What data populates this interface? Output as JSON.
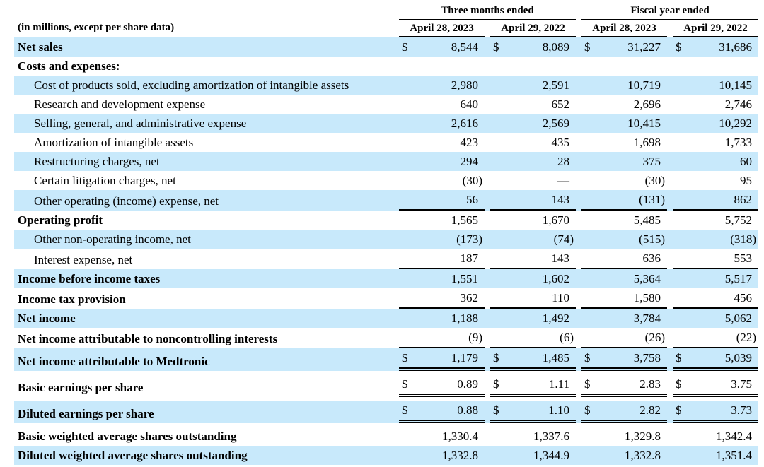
{
  "table": {
    "note": "(in millions, except per share data)",
    "highlight_color": "#c8e9fb",
    "text_color": "#000000",
    "col_groups": [
      {
        "label": "Three months ended",
        "columns": [
          "April 28, 2023",
          "April 29, 2022"
        ]
      },
      {
        "label": "Fiscal year ended",
        "columns": [
          "April 28, 2023",
          "April 29, 2022"
        ]
      }
    ],
    "rows": [
      {
        "label": "Net sales",
        "bold": true,
        "indent": false,
        "dollar": true,
        "highlight": true,
        "underline": "none",
        "spacer_after": false,
        "values": [
          "8,544",
          "8,089",
          "31,227",
          "31,686"
        ]
      },
      {
        "label": "Costs and expenses:",
        "bold": true,
        "indent": false,
        "dollar": false,
        "highlight": false,
        "underline": "none",
        "spacer_after": false,
        "values": [
          "",
          "",
          "",
          ""
        ]
      },
      {
        "label": "Cost of products sold, excluding amortization of intangible assets",
        "bold": false,
        "indent": true,
        "dollar": false,
        "highlight": true,
        "underline": "none",
        "spacer_after": false,
        "values": [
          "2,980",
          "2,591",
          "10,719",
          "10,145"
        ]
      },
      {
        "label": "Research and development expense",
        "bold": false,
        "indent": true,
        "dollar": false,
        "highlight": false,
        "underline": "none",
        "spacer_after": false,
        "values": [
          "640",
          "652",
          "2,696",
          "2,746"
        ]
      },
      {
        "label": "Selling, general, and administrative expense",
        "bold": false,
        "indent": true,
        "dollar": false,
        "highlight": true,
        "underline": "none",
        "spacer_after": false,
        "values": [
          "2,616",
          "2,569",
          "10,415",
          "10,292"
        ]
      },
      {
        "label": "Amortization of intangible assets",
        "bold": false,
        "indent": true,
        "dollar": false,
        "highlight": false,
        "underline": "none",
        "spacer_after": false,
        "values": [
          "423",
          "435",
          "1,698",
          "1,733"
        ]
      },
      {
        "label": "Restructuring charges, net",
        "bold": false,
        "indent": true,
        "dollar": false,
        "highlight": true,
        "underline": "none",
        "spacer_after": false,
        "values": [
          "294",
          "28",
          "375",
          "60"
        ]
      },
      {
        "label": "Certain litigation charges, net",
        "bold": false,
        "indent": true,
        "dollar": false,
        "highlight": false,
        "underline": "none",
        "spacer_after": false,
        "values": [
          "(30)",
          "—",
          "(30)",
          "95"
        ]
      },
      {
        "label": "Other operating (income) expense, net",
        "bold": false,
        "indent": true,
        "dollar": false,
        "highlight": true,
        "underline": "single",
        "spacer_after": false,
        "values": [
          "56",
          "143",
          "(131)",
          "862"
        ]
      },
      {
        "label": "Operating profit",
        "bold": true,
        "indent": false,
        "dollar": false,
        "highlight": false,
        "underline": "none",
        "spacer_after": false,
        "values": [
          "1,565",
          "1,670",
          "5,485",
          "5,752"
        ]
      },
      {
        "label": "Other non-operating income, net",
        "bold": false,
        "indent": true,
        "dollar": false,
        "highlight": true,
        "underline": "none",
        "spacer_after": false,
        "values": [
          "(173)",
          "(74)",
          "(515)",
          "(318)"
        ]
      },
      {
        "label": "Interest expense, net",
        "bold": false,
        "indent": true,
        "dollar": false,
        "highlight": false,
        "underline": "single",
        "spacer_after": false,
        "values": [
          "187",
          "143",
          "636",
          "553"
        ]
      },
      {
        "label": "Income before income taxes",
        "bold": true,
        "indent": false,
        "dollar": false,
        "highlight": true,
        "underline": "none",
        "spacer_after": false,
        "values": [
          "1,551",
          "1,602",
          "5,364",
          "5,517"
        ]
      },
      {
        "label": "Income tax provision",
        "bold": true,
        "indent": false,
        "dollar": false,
        "highlight": false,
        "underline": "single",
        "spacer_after": false,
        "values": [
          "362",
          "110",
          "1,580",
          "456"
        ]
      },
      {
        "label": "Net income",
        "bold": true,
        "indent": false,
        "dollar": false,
        "highlight": true,
        "underline": "none",
        "spacer_after": false,
        "values": [
          "1,188",
          "1,492",
          "3,784",
          "5,062"
        ]
      },
      {
        "label": "Net income attributable to noncontrolling interests",
        "bold": true,
        "indent": false,
        "dollar": false,
        "highlight": false,
        "underline": "single",
        "spacer_after": false,
        "values": [
          "(9)",
          "(6)",
          "(26)",
          "(22)"
        ]
      },
      {
        "label": "Net income attributable to Medtronic",
        "bold": true,
        "indent": false,
        "dollar": true,
        "highlight": true,
        "underline": "double",
        "spacer_after": true,
        "values": [
          "1,179",
          "1,485",
          "3,758",
          "5,039"
        ]
      },
      {
        "label": "Basic earnings per share",
        "bold": true,
        "indent": false,
        "dollar": true,
        "highlight": false,
        "underline": "double",
        "spacer_after": true,
        "values": [
          "0.89",
          "1.11",
          "2.83",
          "3.75"
        ]
      },
      {
        "label": "Diluted earnings per share",
        "bold": true,
        "indent": false,
        "dollar": true,
        "highlight": true,
        "underline": "double",
        "spacer_after": true,
        "values": [
          "0.88",
          "1.10",
          "2.82",
          "3.73"
        ]
      },
      {
        "label": "Basic weighted average shares outstanding",
        "bold": true,
        "indent": false,
        "dollar": false,
        "highlight": false,
        "underline": "none",
        "spacer_after": false,
        "values": [
          "1,330.4",
          "1,337.6",
          "1,329.8",
          "1,342.4"
        ]
      },
      {
        "label": "Diluted weighted average shares outstanding",
        "bold": true,
        "indent": false,
        "dollar": false,
        "highlight": true,
        "underline": "none",
        "spacer_after": false,
        "values": [
          "1,332.8",
          "1,344.9",
          "1,332.8",
          "1,351.4"
        ]
      }
    ]
  }
}
